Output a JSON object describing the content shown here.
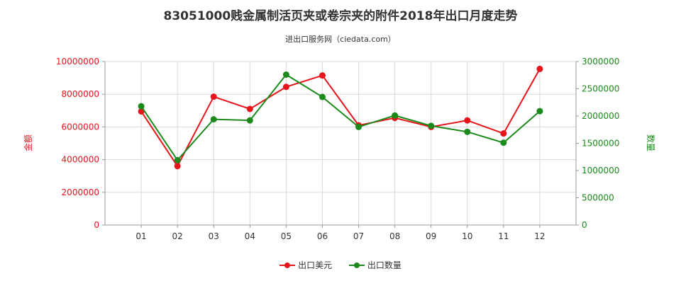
{
  "chart_data": {
    "type": "line",
    "title": "83051000贱金属制活页夹或卷宗夹的附件2018年出口月度走势",
    "subtitle": "进出口服务网（ciedata.com）",
    "categories": [
      "01",
      "02",
      "03",
      "04",
      "05",
      "06",
      "07",
      "08",
      "09",
      "10",
      "11",
      "12"
    ],
    "y_left": {
      "label": "金额",
      "range": [
        0,
        10000000
      ],
      "ticks": [
        "0",
        "2000000",
        "4000000",
        "6000000",
        "8000000",
        "10000000"
      ],
      "color": "#e8141c"
    },
    "y_right": {
      "label": "数量",
      "range": [
        0,
        3000000
      ],
      "ticks": [
        "0",
        "500000",
        "1000000",
        "1500000",
        "2000000",
        "2500000",
        "3000000"
      ],
      "color": "#1b8a1b"
    },
    "series": [
      {
        "name": "出口美元",
        "axis": "left",
        "color": "#e8141c",
        "values": [
          6950000,
          3600000,
          7850000,
          7100000,
          8450000,
          9150000,
          6100000,
          6550000,
          6000000,
          6400000,
          5600000,
          9550000
        ]
      },
      {
        "name": "出口数量",
        "axis": "right",
        "color": "#1b8a1b",
        "values": [
          2180000,
          1190000,
          1940000,
          1920000,
          2760000,
          2350000,
          1800000,
          2010000,
          1820000,
          1710000,
          1510000,
          2090000
        ]
      }
    ],
    "grid": true,
    "legend_position": "bottom"
  }
}
